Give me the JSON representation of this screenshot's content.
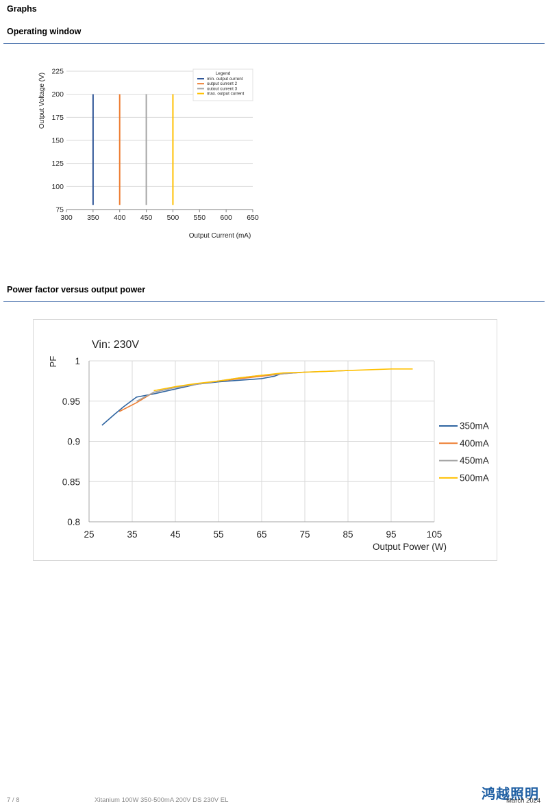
{
  "page": {
    "heading": "Graphs"
  },
  "sections": {
    "operating_window": {
      "title": "Operating window"
    },
    "power_factor": {
      "title": "Power factor versus output power"
    }
  },
  "chart_data": [
    {
      "type": "line",
      "xlabel": "Output Current (mA)",
      "ylabel": "Output Voltage (V)",
      "xlim": [
        300,
        650
      ],
      "ylim": [
        75,
        225
      ],
      "xticks": [
        300,
        350,
        400,
        450,
        500,
        550,
        600,
        650
      ],
      "yticks": [
        75,
        100,
        125,
        150,
        175,
        200,
        225
      ],
      "grid": true,
      "legend_title": "Legend",
      "legend_position": "top-right",
      "series": [
        {
          "name": "min. output current",
          "color": "#2f5597",
          "x": [
            350,
            350
          ],
          "y": [
            80,
            200
          ]
        },
        {
          "name": "output current 2",
          "color": "#ed7d31",
          "x": [
            400,
            400
          ],
          "y": [
            80,
            200
          ]
        },
        {
          "name": "outout current 3",
          "color": "#a5a5a5",
          "x": [
            450,
            450
          ],
          "y": [
            80,
            200
          ]
        },
        {
          "name": "max. output current",
          "color": "#ffc000",
          "x": [
            500,
            500
          ],
          "y": [
            80,
            200
          ]
        }
      ]
    },
    {
      "type": "line",
      "title": "Vin: 230V",
      "xlabel": "Output Power (W)",
      "ylabel": "PF",
      "xlim": [
        25,
        105
      ],
      "ylim": [
        0.8,
        1.0
      ],
      "xticks": [
        25,
        35,
        45,
        55,
        65,
        75,
        85,
        95,
        105
      ],
      "yticks": [
        0.8,
        0.85,
        0.9,
        0.95,
        1.0
      ],
      "ytick_labels": [
        "0.8",
        "0.85",
        "0.9",
        "0.95",
        "1"
      ],
      "grid": true,
      "legend_position": "right",
      "series": [
        {
          "name": "350mA",
          "color": "#2e64a0",
          "x": [
            28,
            31,
            33,
            36,
            40,
            45,
            50,
            55,
            60,
            65,
            68,
            70
          ],
          "y": [
            0.92,
            0.934,
            0.943,
            0.955,
            0.959,
            0.965,
            0.971,
            0.974,
            0.976,
            0.978,
            0.981,
            0.985
          ]
        },
        {
          "name": "400mA",
          "color": "#ed7d31",
          "x": [
            32,
            36,
            40,
            45,
            50,
            55,
            60,
            65,
            70,
            75
          ],
          "y": [
            0.937,
            0.948,
            0.961,
            0.967,
            0.971,
            0.975,
            0.978,
            0.981,
            0.984,
            0.986
          ]
        },
        {
          "name": "450mA",
          "color": "#a5a5a5",
          "x": [
            36,
            40,
            45,
            50,
            55,
            60,
            65,
            70,
            75,
            80,
            85
          ],
          "y": [
            0.95,
            0.961,
            0.967,
            0.971,
            0.975,
            0.979,
            0.982,
            0.984,
            0.986,
            0.987,
            0.988
          ]
        },
        {
          "name": "500mA",
          "color": "#ffc000",
          "x": [
            40,
            45,
            50,
            55,
            60,
            65,
            70,
            75,
            80,
            85,
            90,
            95,
            100
          ],
          "y": [
            0.963,
            0.968,
            0.972,
            0.975,
            0.979,
            0.982,
            0.985,
            0.986,
            0.987,
            0.988,
            0.989,
            0.99,
            0.99
          ]
        }
      ]
    }
  ],
  "footer": {
    "page_number": "7 / 8",
    "document_title": "Xitanium 100W 350-500mA 200V DS 230V EL",
    "date": "March 2024"
  },
  "logo": {
    "text": "鸿越照明"
  }
}
